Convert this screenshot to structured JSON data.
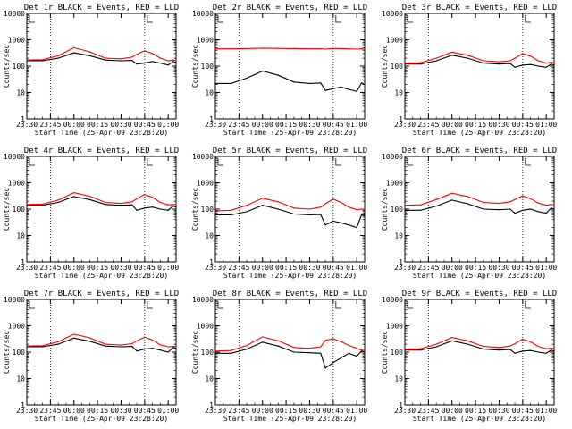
{
  "figure": {
    "colors": {
      "black": "#000000",
      "red": "#ff0000",
      "background": "#ffffff"
    }
  },
  "chart_data": [
    {
      "type": "line",
      "title": "Det 1r BLACK = Events, RED = LLD",
      "xlabel": "Start Time (25-Apr-09 23:28:20)",
      "ylabel": "Counts/sec",
      "ylog": true,
      "ylim": [
        1,
        10000
      ],
      "ylim_ticks": [
        "1",
        "10",
        "100",
        "1000",
        "10000"
      ],
      "xlim": [
        "23:30",
        "01:05"
      ],
      "x_ticks": [
        "23:30",
        "23:45",
        "00:00",
        "00:15",
        "00:30",
        "00:45",
        "01:00"
      ],
      "marker_times": [
        "23:45",
        "00:45"
      ],
      "x": [
        "23:30",
        "23:40",
        "23:50",
        "00:00",
        "00:10",
        "00:20",
        "00:30",
        "00:37",
        "00:40",
        "00:45",
        "00:50",
        "00:55",
        "01:00",
        "01:03",
        "01:05"
      ],
      "series": [
        {
          "values": [
            160,
            160,
            200,
            320,
            250,
            170,
            160,
            165,
            120,
            130,
            150,
            130,
            110,
            150,
            140
          ]
        },
        {
          "values": [
            170,
            175,
            250,
            500,
            350,
            200,
            190,
            220,
            280,
            380,
            300,
            200,
            160,
            170,
            165
          ]
        }
      ]
    },
    {
      "type": "line",
      "title": "Det 2r BLACK = Events, RED = LLD",
      "xlabel": "Start Time (25-Apr-09 23:28:20)",
      "ylabel": "Counts/sec",
      "ylog": true,
      "ylim": [
        1,
        10000
      ],
      "ylim_ticks": [
        "1",
        "10",
        "100",
        "1000",
        "10000"
      ],
      "xlim": [
        "23:30",
        "01:05"
      ],
      "x_ticks": [
        "23:30",
        "23:45",
        "00:00",
        "00:15",
        "00:30",
        "00:45",
        "01:00"
      ],
      "marker_times": [
        "23:45",
        "00:45"
      ],
      "x": [
        "23:30",
        "23:40",
        "23:50",
        "00:00",
        "00:10",
        "00:20",
        "00:30",
        "00:37",
        "00:40",
        "00:45",
        "00:50",
        "00:55",
        "01:00",
        "01:03",
        "01:05"
      ],
      "series": [
        {
          "values": [
            22,
            22,
            35,
            65,
            45,
            25,
            22,
            23,
            12,
            14,
            16,
            13,
            11,
            23,
            20
          ]
        },
        {
          "values": [
            450,
            450,
            460,
            480,
            470,
            460,
            450,
            455,
            440,
            470,
            460,
            450,
            440,
            450,
            445
          ]
        }
      ]
    },
    {
      "type": "line",
      "title": "Det 3r BLACK = Events, RED = LLD",
      "xlabel": "Start Time (25-Apr-09 23:28:20)",
      "ylabel": "Counts/sec",
      "ylog": true,
      "ylim": [
        1,
        10000
      ],
      "ylim_ticks": [
        "1",
        "10",
        "100",
        "1000",
        "10000"
      ],
      "xlim": [
        "23:30",
        "01:05"
      ],
      "x_ticks": [
        "23:30",
        "23:45",
        "00:00",
        "00:15",
        "00:30",
        "00:45",
        "01:00"
      ],
      "marker_times": [
        "23:45",
        "00:45"
      ],
      "x": [
        "23:30",
        "23:40",
        "23:50",
        "00:00",
        "00:10",
        "00:20",
        "00:30",
        "00:37",
        "00:40",
        "00:45",
        "00:50",
        "00:55",
        "01:00",
        "01:03",
        "01:05"
      ],
      "series": [
        {
          "values": [
            120,
            120,
            160,
            260,
            200,
            130,
            120,
            125,
            90,
            110,
            115,
            100,
            90,
            120,
            110
          ]
        },
        {
          "values": [
            130,
            135,
            200,
            340,
            260,
            160,
            145,
            160,
            200,
            300,
            240,
            160,
            130,
            140,
            135
          ]
        }
      ]
    },
    {
      "type": "line",
      "title": "Det 4r BLACK = Events, RED = LLD",
      "xlabel": "Start Time (25-Apr-09 23:28:20)",
      "ylabel": "Counts/sec",
      "ylog": true,
      "ylim": [
        1,
        10000
      ],
      "ylim_ticks": [
        "1",
        "10",
        "100",
        "1000",
        "10000"
      ],
      "xlim": [
        "23:30",
        "01:05"
      ],
      "x_ticks": [
        "23:30",
        "23:45",
        "00:00",
        "00:15",
        "00:30",
        "00:45",
        "01:00"
      ],
      "marker_times": [
        "23:45",
        "00:45"
      ],
      "x": [
        "23:30",
        "23:40",
        "23:50",
        "00:00",
        "00:10",
        "00:20",
        "00:30",
        "00:37",
        "00:40",
        "00:45",
        "00:50",
        "00:55",
        "01:00",
        "01:03",
        "01:05"
      ],
      "series": [
        {
          "values": [
            140,
            140,
            180,
            300,
            230,
            150,
            140,
            145,
            90,
            110,
            120,
            100,
            90,
            130,
            120
          ]
        },
        {
          "values": [
            150,
            155,
            220,
            420,
            310,
            180,
            165,
            190,
            250,
            360,
            280,
            180,
            145,
            150,
            148
          ]
        }
      ]
    },
    {
      "type": "line",
      "title": "Det 5r BLACK = Events, RED = LLD",
      "xlabel": "Start Time (25-Apr-09 23:28:20)",
      "ylabel": "Counts/sec",
      "ylog": true,
      "ylim": [
        1,
        10000
      ],
      "ylim_ticks": [
        "1",
        "10",
        "100",
        "1000",
        "10000"
      ],
      "xlim": [
        "23:30",
        "01:05"
      ],
      "x_ticks": [
        "23:30",
        "23:45",
        "00:00",
        "00:15",
        "00:30",
        "00:45",
        "01:00"
      ],
      "marker_times": [
        "23:45",
        "00:45"
      ],
      "x": [
        "23:30",
        "23:40",
        "23:50",
        "00:00",
        "00:10",
        "00:20",
        "00:30",
        "00:37",
        "00:40",
        "00:45",
        "00:50",
        "00:55",
        "01:00",
        "01:03",
        "01:05"
      ],
      "series": [
        {
          "values": [
            60,
            60,
            80,
            140,
            100,
            65,
            60,
            62,
            25,
            35,
            30,
            25,
            20,
            60,
            55
          ]
        },
        {
          "values": [
            85,
            90,
            140,
            260,
            190,
            110,
            100,
            120,
            160,
            240,
            180,
            120,
            95,
            100,
            98
          ]
        }
      ]
    },
    {
      "type": "line",
      "title": "Det 6r BLACK = Events, RED = LLD",
      "xlabel": "Start Time (25-Apr-09 23:28:20)",
      "ylabel": "Counts/sec",
      "ylog": true,
      "ylim": [
        1,
        10000
      ],
      "ylim_ticks": [
        "1",
        "10",
        "100",
        "1000",
        "10000"
      ],
      "xlim": [
        "23:30",
        "01:05"
      ],
      "x_ticks": [
        "23:30",
        "23:45",
        "00:00",
        "00:15",
        "00:30",
        "00:45",
        "01:00"
      ],
      "marker_times": [
        "23:45",
        "00:45"
      ],
      "x": [
        "23:30",
        "23:40",
        "23:50",
        "00:00",
        "00:10",
        "00:20",
        "00:30",
        "00:37",
        "00:40",
        "00:45",
        "00:50",
        "00:55",
        "01:00",
        "01:03",
        "01:05"
      ],
      "series": [
        {
          "values": [
            90,
            90,
            130,
            220,
            160,
            100,
            95,
            100,
            70,
            90,
            100,
            80,
            70,
            110,
            100
          ]
        },
        {
          "values": [
            140,
            145,
            230,
            400,
            300,
            180,
            165,
            190,
            230,
            320,
            250,
            170,
            140,
            150,
            145
          ]
        }
      ]
    },
    {
      "type": "line",
      "title": "Det 7r BLACK = Events, RED = LLD",
      "xlabel": "Start Time (25-Apr-09 23:28:20)",
      "ylabel": "Counts/sec",
      "ylog": true,
      "ylim": [
        1,
        10000
      ],
      "ylim_ticks": [
        "1",
        "10",
        "100",
        "1000",
        "10000"
      ],
      "xlim": [
        "23:30",
        "01:05"
      ],
      "x_ticks": [
        "23:30",
        "23:45",
        "00:00",
        "00:15",
        "00:30",
        "00:45",
        "01:00"
      ],
      "marker_times": [
        "23:45",
        "00:45"
      ],
      "x": [
        "23:30",
        "23:40",
        "23:50",
        "00:00",
        "00:10",
        "00:20",
        "00:30",
        "00:37",
        "00:40",
        "00:45",
        "00:50",
        "00:55",
        "01:00",
        "01:03",
        "01:05"
      ],
      "series": [
        {
          "values": [
            160,
            160,
            200,
            340,
            260,
            170,
            160,
            165,
            110,
            130,
            140,
            120,
            100,
            150,
            140
          ]
        },
        {
          "values": [
            170,
            175,
            250,
            480,
            350,
            200,
            185,
            210,
            270,
            370,
            290,
            190,
            160,
            165,
            162
          ]
        }
      ]
    },
    {
      "type": "line",
      "title": "Det 8r BLACK = Events, RED = LLD",
      "xlabel": "Start Time (25-Apr-09 23:28:20)",
      "ylabel": "Counts/sec",
      "ylog": true,
      "ylim": [
        1,
        10000
      ],
      "ylim_ticks": [
        "1",
        "10",
        "100",
        "1000",
        "10000"
      ],
      "xlim": [
        "23:30",
        "01:05"
      ],
      "x_ticks": [
        "23:30",
        "23:45",
        "00:00",
        "00:15",
        "00:30",
        "00:45",
        "01:00"
      ],
      "marker_times": [
        "23:45",
        "00:45"
      ],
      "x": [
        "23:30",
        "23:40",
        "23:50",
        "00:00",
        "00:10",
        "00:20",
        "00:30",
        "00:37",
        "00:40",
        "00:45",
        "00:50",
        "00:55",
        "01:00",
        "01:03",
        "01:05"
      ],
      "series": [
        {
          "values": [
            90,
            90,
            130,
            240,
            170,
            100,
            95,
            90,
            25,
            40,
            60,
            90,
            70,
            110,
            100
          ]
        },
        {
          "values": [
            110,
            115,
            180,
            380,
            270,
            150,
            140,
            160,
            280,
            320,
            250,
            180,
            140,
            120,
            115
          ]
        }
      ]
    },
    {
      "type": "line",
      "title": "Det 9r BLACK = Events, RED = LLD",
      "xlabel": "Start Time (25-Apr-09 23:28:20)",
      "ylabel": "Counts/sec",
      "ylog": true,
      "ylim": [
        1,
        10000
      ],
      "ylim_ticks": [
        "1",
        "10",
        "100",
        "1000",
        "10000"
      ],
      "xlim": [
        "23:30",
        "01:05"
      ],
      "x_ticks": [
        "23:30",
        "23:45",
        "00:00",
        "00:15",
        "00:30",
        "00:45",
        "01:00"
      ],
      "marker_times": [
        "23:45",
        "00:45"
      ],
      "x": [
        "23:30",
        "23:40",
        "23:50",
        "00:00",
        "00:10",
        "00:20",
        "00:30",
        "00:37",
        "00:40",
        "00:45",
        "00:50",
        "00:55",
        "01:00",
        "01:03",
        "01:05"
      ],
      "series": [
        {
          "values": [
            120,
            120,
            160,
            270,
            200,
            130,
            120,
            125,
            90,
            110,
            115,
            100,
            90,
            120,
            110
          ]
        },
        {
          "values": [
            130,
            135,
            200,
            360,
            270,
            165,
            150,
            170,
            210,
            310,
            245,
            165,
            135,
            140,
            138
          ]
        }
      ]
    }
  ]
}
